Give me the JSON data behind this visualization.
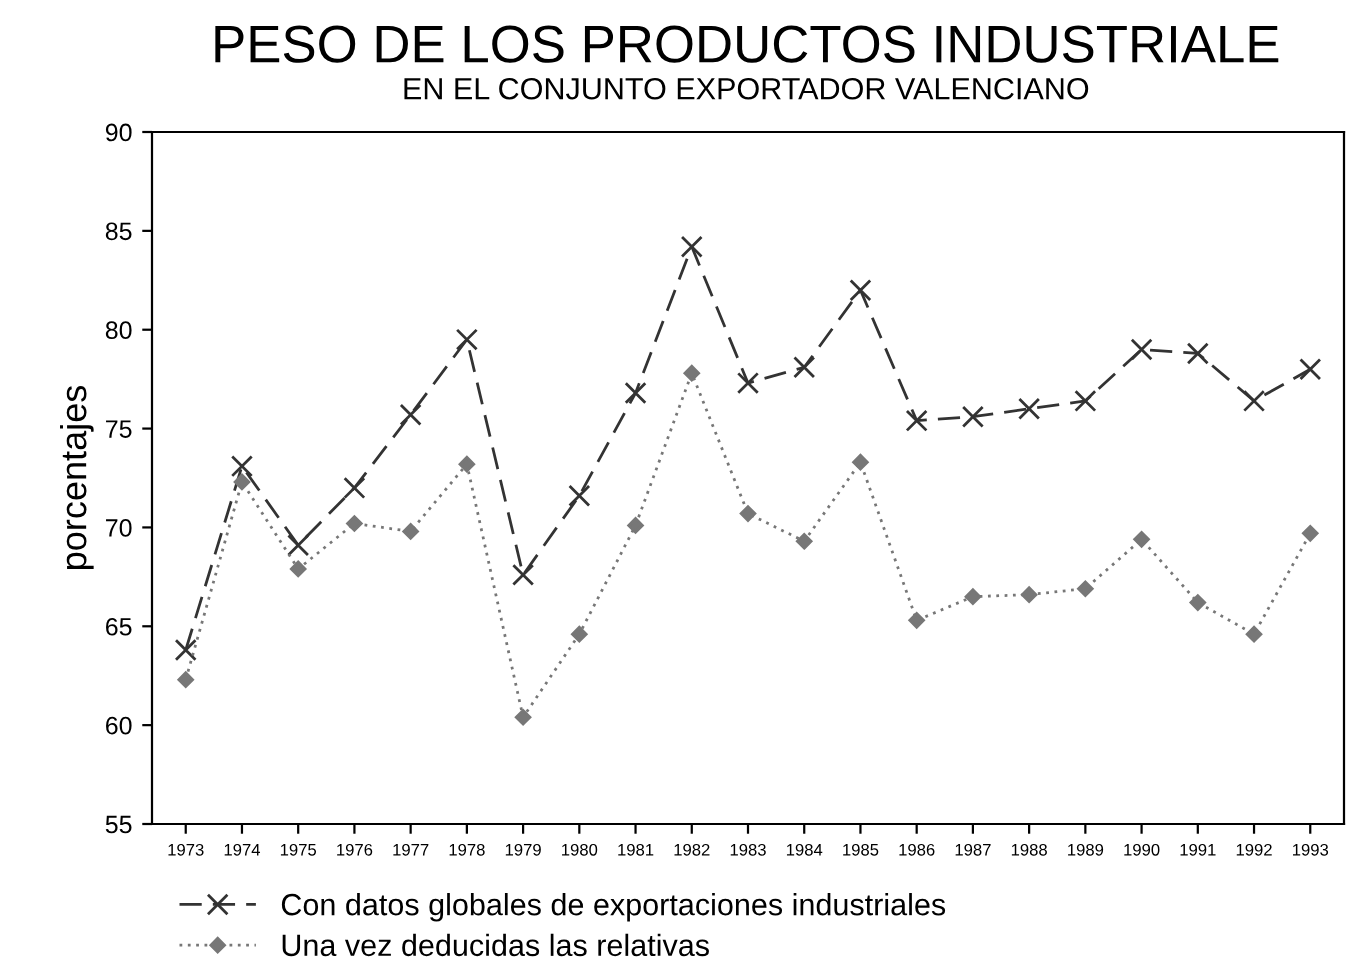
{
  "chart_data": {
    "type": "line",
    "title": "PESO DE LOS PRODUCTOS INDUSTRIALE",
    "subtitle": "EN EL CONJUNTO EXPORTADOR VALENCIANO",
    "ylabel": "porcentajes",
    "categories": [
      "1973",
      "1974",
      "1975",
      "1976",
      "1977",
      "1978",
      "1979",
      "1980",
      "1981",
      "1982",
      "1983",
      "1984",
      "1985",
      "1986",
      "1987",
      "1988",
      "1989",
      "1990",
      "1991",
      "1992",
      "1993"
    ],
    "series": [
      {
        "name": "Con datos globales de exportaciones industriales",
        "color": "#333333",
        "marker": "cross",
        "line_style": "dashed",
        "values": [
          63.8,
          73.1,
          69.1,
          72,
          75.7,
          79.5,
          67.6,
          71.6,
          76.8,
          84.2,
          77.3,
          78.1,
          82,
          75.4,
          75.6,
          76,
          76.4,
          79,
          78.8,
          76.4,
          78
        ]
      },
      {
        "name": "Una vez deducidas las relativas",
        "color": "#777777",
        "marker": "diamond",
        "line_style": "dotted",
        "values": [
          62.3,
          72.3,
          67.9,
          70.2,
          69.8,
          73.2,
          60.4,
          64.6,
          70.1,
          77.8,
          70.7,
          69.3,
          73.3,
          65.3,
          66.5,
          66.6,
          66.9,
          69.4,
          66.2,
          64.6,
          69.7
        ]
      }
    ],
    "ylim": [
      55,
      90
    ],
    "yticks": [
      55,
      60,
      65,
      70,
      75,
      80,
      85,
      90
    ],
    "grid": false,
    "legend": "bottom"
  }
}
